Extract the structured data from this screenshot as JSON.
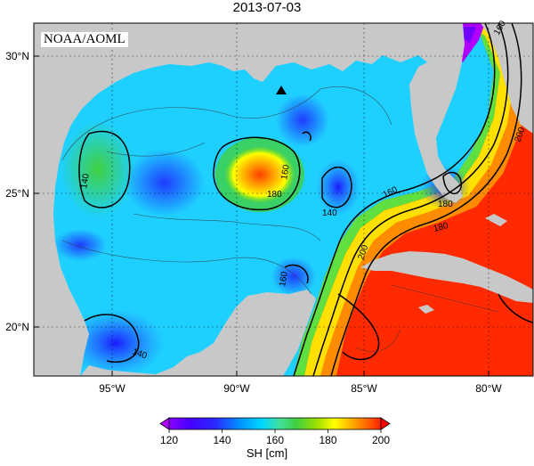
{
  "title": "2013-07-03",
  "credit": "NOAA/AOML",
  "lon_ticks": [
    "95°W",
    "90°W",
    "85°W",
    "80°W"
  ],
  "lat_ticks": [
    "30°N",
    "25°N",
    "20°N"
  ],
  "contour_labels": [
    "140",
    "160",
    "180",
    "200",
    "160",
    "180",
    "140",
    "160",
    "180",
    "200",
    "140",
    "160"
  ],
  "colorbar": {
    "ticks": [
      "120",
      "140",
      "160",
      "180",
      "200"
    ],
    "label": "SH [cm]",
    "colors": [
      "#8a00ff",
      "#2a2aff",
      "#0090ff",
      "#00d8ff",
      "#40e0a0",
      "#40d040",
      "#a0e000",
      "#ffff00",
      "#ffb000",
      "#ff6000",
      "#ff2000"
    ]
  },
  "marker": "triangle",
  "map": {
    "lon_range": [
      -98,
      -78
    ],
    "lat_range": [
      18,
      31
    ],
    "land_color": "#c8c8c8",
    "grid": true
  }
}
